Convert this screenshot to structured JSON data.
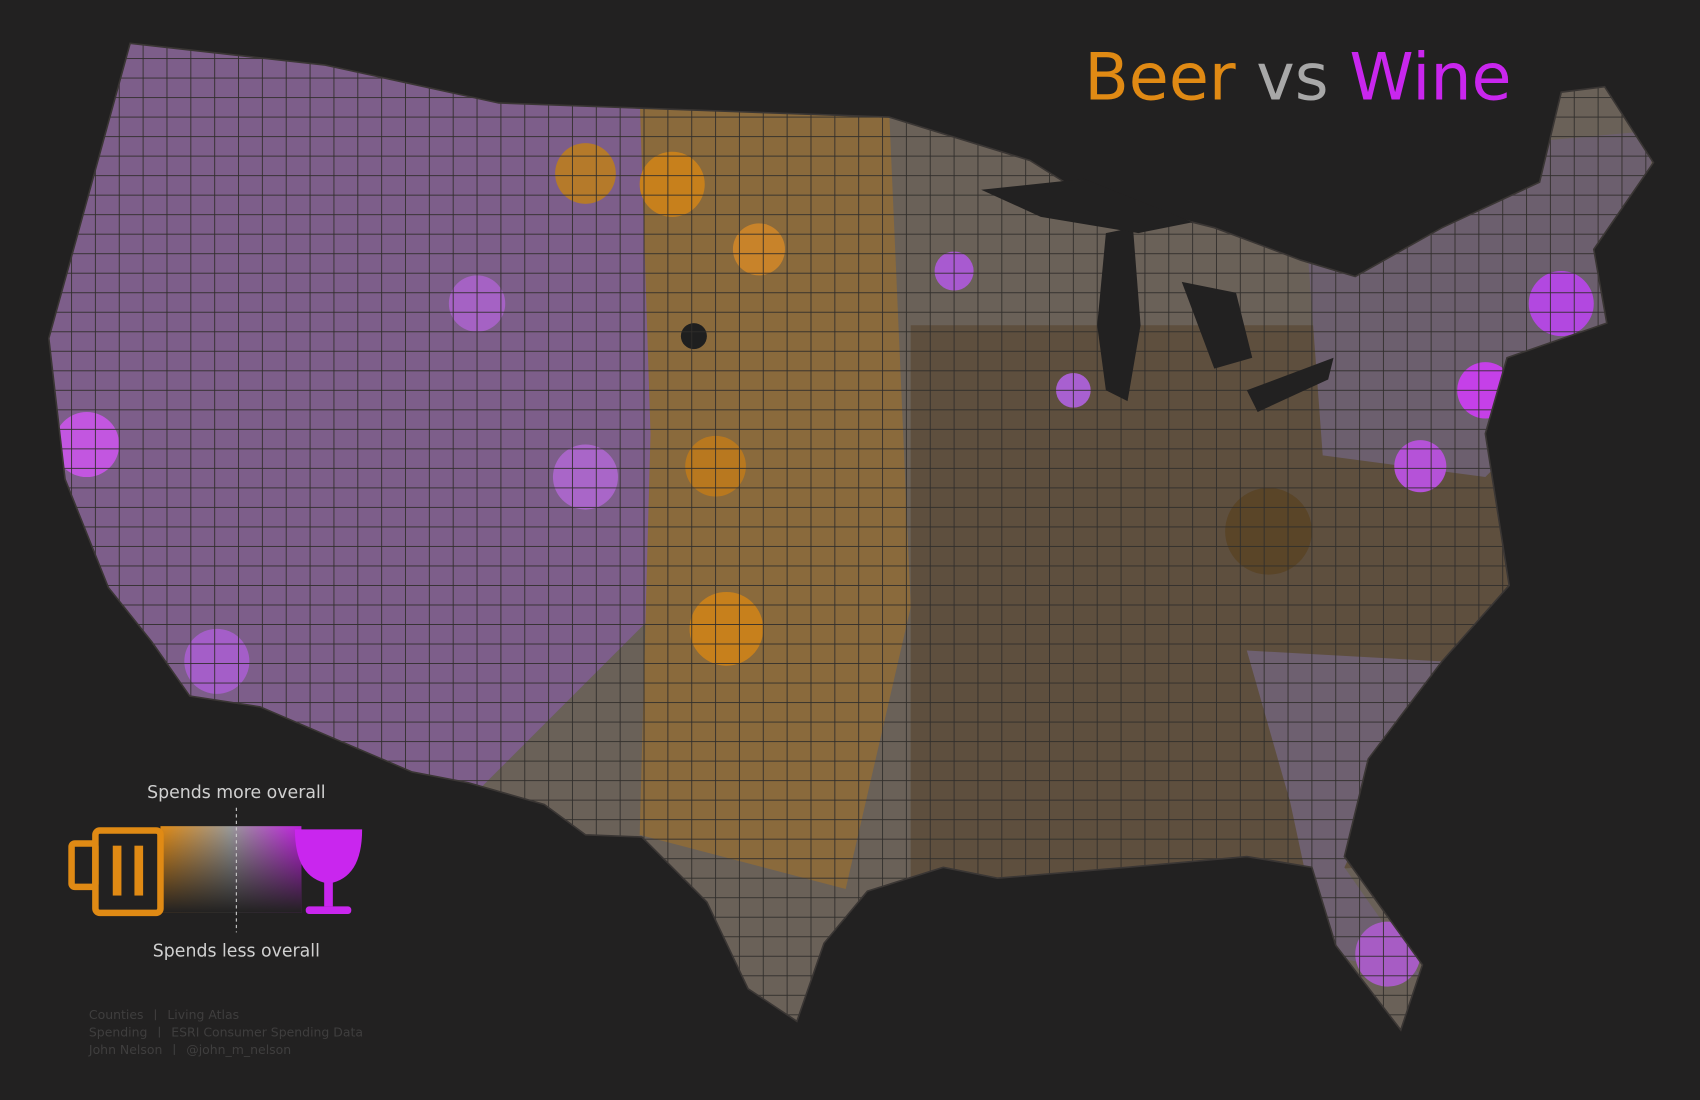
{
  "header": {
    "title": {
      "beer": "Beer",
      "vs": "vs",
      "wine": "Wine"
    }
  },
  "legend": {
    "top_label": "Spends more overall",
    "bottom_label": "Spends less overall"
  },
  "credits": [
    {
      "label": "Counties",
      "source": "Living Atlas"
    },
    {
      "label": "Spending",
      "source": "ESRI Consumer Spending Data"
    },
    {
      "label": "John Nelson",
      "source": "@john_m_nelson"
    }
  ]
}
